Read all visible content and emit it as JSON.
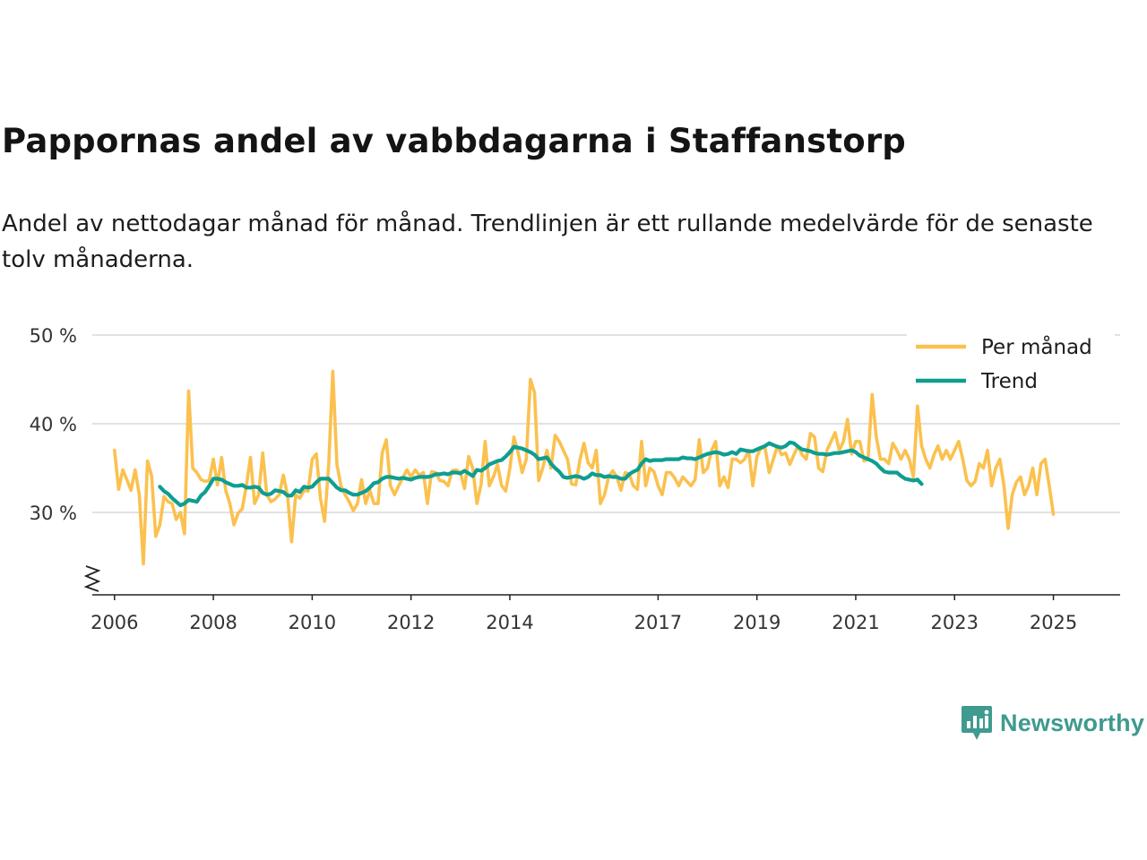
{
  "title": "Pappornas andel av vabbdagarna i Staffanstorp",
  "subtitle": "Andel av nettodagar månad för månad. Trendlinjen är ett rullande medelvärde för de senaste tolv månaderna.",
  "brand": {
    "name": "Newsworthy",
    "color": "#3f9a8f"
  },
  "colors": {
    "monthly": "#fbc14f",
    "trend": "#0e9e91",
    "grid": "#d8d8d8",
    "axis": "#222222"
  },
  "chart_data": {
    "type": "line",
    "title": "Pappornas andel av vabbdagarna i Staffanstorp",
    "xlabel": "",
    "ylabel": "",
    "ylim": [
      21,
      50
    ],
    "xlim": [
      2005.55,
      2026.35
    ],
    "y_ticks": [
      {
        "value": 30,
        "label": "30 %"
      },
      {
        "value": 40,
        "label": "40 %"
      },
      {
        "value": 50,
        "label": "50 %"
      }
    ],
    "x_ticks": [
      {
        "value": 2006,
        "label": "2006"
      },
      {
        "value": 2008,
        "label": "2008"
      },
      {
        "value": 2010,
        "label": "2010"
      },
      {
        "value": 2012,
        "label": "2012"
      },
      {
        "value": 2014,
        "label": "2014"
      },
      {
        "value": 2017,
        "label": "2017"
      },
      {
        "value": 2019,
        "label": "2019"
      },
      {
        "value": 2021,
        "label": "2021"
      },
      {
        "value": 2023,
        "label": "2023"
      },
      {
        "value": 2025,
        "label": "2025"
      }
    ],
    "grid": true,
    "axis_break": true,
    "legend_position": "top-right",
    "series": [
      {
        "name": "Per månad",
        "key": "monthly",
        "start": 2006.0,
        "step": 0.08333,
        "values": [
          37.0,
          32.6,
          34.8,
          33.7,
          32.5,
          34.8,
          32.0,
          24.2,
          35.8,
          34.1,
          27.3,
          28.6,
          31.8,
          31.2,
          31.0,
          29.2,
          30.0,
          27.6,
          43.7,
          35.0,
          34.5,
          33.7,
          33.5,
          33.6,
          36.0,
          33.1,
          36.2,
          32.5,
          31.0,
          28.6,
          29.9,
          30.4,
          33.0,
          36.2,
          31.0,
          32.0,
          36.7,
          32.0,
          31.2,
          31.5,
          32.0,
          34.2,
          32.0,
          26.7,
          32.0,
          31.6,
          32.5,
          32.4,
          36.0,
          36.6,
          31.6,
          29.0,
          35.3,
          45.9,
          35.4,
          33.0,
          32.0,
          31.2,
          30.2,
          31.0,
          33.7,
          31.0,
          32.5,
          31.0,
          31.0,
          36.7,
          38.2,
          33.0,
          32.0,
          33.0,
          33.9,
          34.8,
          34.0,
          34.8,
          34.2,
          34.5,
          31.0,
          34.6,
          34.5,
          33.6,
          33.5,
          33.0,
          34.7,
          34.8,
          34.5,
          32.7,
          36.3,
          35.0,
          31.0,
          33.1,
          38.0,
          33.0,
          34.0,
          35.4,
          33.0,
          32.4,
          35.0,
          38.5,
          36.8,
          34.5,
          36.0,
          45.0,
          43.5,
          33.6,
          35.0,
          37.0,
          35.0,
          38.7,
          38.0,
          37.0,
          36.0,
          33.2,
          33.1,
          35.9,
          37.8,
          35.6,
          35.0,
          37.0,
          31.0,
          32.0,
          34.0,
          34.7,
          34.0,
          32.5,
          34.5,
          34.3,
          33.0,
          32.6,
          38.0,
          33.0,
          35.0,
          34.6,
          33.0,
          32.0,
          34.5,
          34.5,
          33.9,
          33.0,
          34.0,
          33.5,
          33.0,
          33.7,
          38.2,
          34.5,
          35.0,
          37.0,
          38.0,
          33.0,
          34.0,
          32.8,
          36.0,
          36.0,
          35.6,
          36.0,
          37.0,
          33.0,
          36.3,
          37.3,
          37.2,
          34.5,
          36.0,
          37.5,
          36.5,
          36.7,
          35.4,
          36.5,
          37.5,
          36.5,
          36.0,
          38.9,
          38.5,
          35.0,
          34.6,
          37.0,
          38.0,
          39.0,
          37.0,
          38.0,
          40.5,
          36.6,
          38.0,
          38.0,
          35.8,
          36.0,
          43.3,
          38.5,
          36.0,
          36.0,
          35.5,
          37.8,
          37.0,
          36.0,
          37.0,
          36.0,
          34.0,
          42.0,
          37.5,
          36.0,
          35.0,
          36.5,
          37.5,
          36.0,
          37.0,
          36.0,
          37.0,
          38.0,
          36.0,
          33.6,
          33.0,
          33.5,
          35.5,
          35.0,
          37.0,
          33.0,
          35.0,
          36.0,
          33.0,
          28.2,
          32.0,
          33.4,
          34.0,
          32.0,
          33.0,
          35.0,
          32.0,
          35.5,
          36.0,
          33.0,
          29.8
        ]
      },
      {
        "name": "Trend",
        "key": "trend",
        "start": 2006.9167,
        "step": 0.08333,
        "values": [
          32.9,
          32.4,
          32.1,
          31.6,
          31.2,
          30.8,
          31.0,
          31.4,
          31.3,
          31.2,
          31.9,
          32.3,
          33.0,
          33.8,
          33.8,
          33.7,
          33.4,
          33.2,
          33.0,
          33.0,
          33.1,
          32.8,
          32.8,
          32.9,
          32.8,
          32.2,
          32.0,
          32.1,
          32.5,
          32.4,
          32.3,
          31.9,
          31.9,
          32.5,
          32.3,
          32.9,
          32.8,
          32.9,
          33.4,
          33.8,
          33.8,
          33.8,
          33.3,
          32.8,
          32.5,
          32.5,
          32.2,
          32.0,
          32.0,
          32.2,
          32.4,
          32.8,
          33.3,
          33.4,
          33.8,
          34.0,
          34.0,
          33.9,
          33.8,
          33.9,
          33.8,
          33.7,
          33.9,
          34.0,
          34.0,
          34.0,
          34.1,
          34.3,
          34.3,
          34.4,
          34.3,
          34.5,
          34.5,
          34.4,
          34.7,
          34.4,
          34.1,
          34.8,
          34.7,
          35.0,
          35.4,
          35.6,
          35.8,
          35.9,
          36.3,
          36.8,
          37.4,
          37.3,
          37.2,
          37.0,
          36.8,
          36.5,
          36.0,
          36.1,
          36.2,
          35.5,
          35.0,
          34.6,
          34.0,
          33.9,
          34.0,
          34.1,
          34.0,
          33.8,
          34.0,
          34.4,
          34.2,
          34.2,
          34.0,
          34.1,
          34.0,
          34.0,
          33.8,
          33.8,
          34.3,
          34.6,
          34.8,
          35.5,
          36.0,
          35.8,
          35.9,
          35.9,
          35.9,
          36.0,
          36.0,
          36.0,
          36.0,
          36.2,
          36.1,
          36.1,
          36.0,
          36.2,
          36.4,
          36.6,
          36.7,
          36.8,
          36.7,
          36.5,
          36.6,
          36.8,
          36.6,
          37.1,
          37.0,
          36.9,
          36.9,
          37.1,
          37.3,
          37.5,
          37.8,
          37.6,
          37.4,
          37.3,
          37.5,
          37.9,
          37.8,
          37.4,
          37.1,
          37.0,
          36.9,
          36.7,
          36.6,
          36.6,
          36.5,
          36.6,
          36.7,
          36.7,
          36.8,
          36.9,
          37.0,
          36.8,
          36.4,
          36.2,
          36.0,
          35.8,
          35.5,
          35.0,
          34.6,
          34.5,
          34.5,
          34.5,
          34.1,
          33.8,
          33.7,
          33.6,
          33.7,
          33.2
        ]
      }
    ]
  }
}
